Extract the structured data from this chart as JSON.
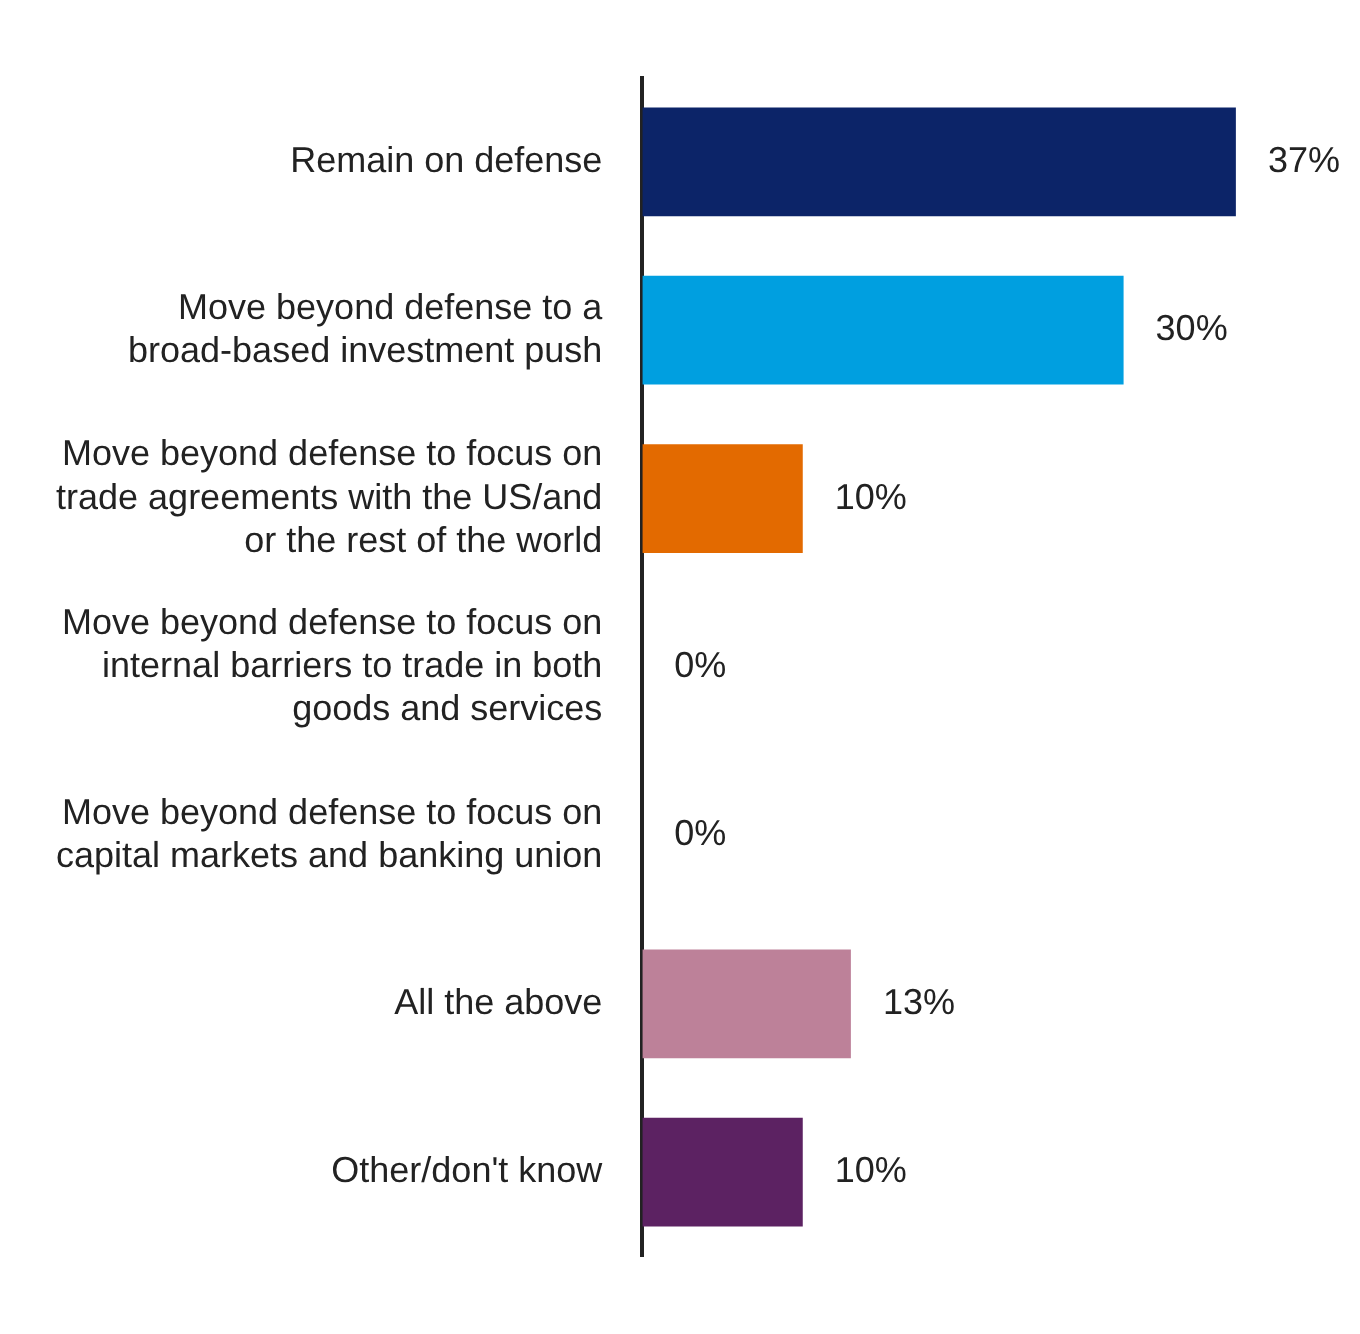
{
  "chart_data": {
    "type": "bar",
    "orientation": "horizontal",
    "categories": [
      "Remain on defense",
      "Move beyond defense to a broad-based investment push",
      "Move beyond defense to focus on trade agreements with the US/and or the rest of the world",
      "Move beyond defense to focus on internal barriers to trade in both goods and services",
      "Move beyond defense to focus on capital markets and banking union",
      "All the above",
      "Other/don't know"
    ],
    "values": [
      37,
      30,
      10,
      0,
      0,
      13,
      10
    ],
    "colors": [
      "#0c2468",
      "#009fe0",
      "#e36a00",
      "#e36a00",
      "#e36a00",
      "#bd8199",
      "#5c2262"
    ],
    "value_labels": [
      "37%",
      "30%",
      "10%",
      "0%",
      "0%",
      "13%",
      "10%"
    ],
    "grid": false,
    "legend": false
  }
}
